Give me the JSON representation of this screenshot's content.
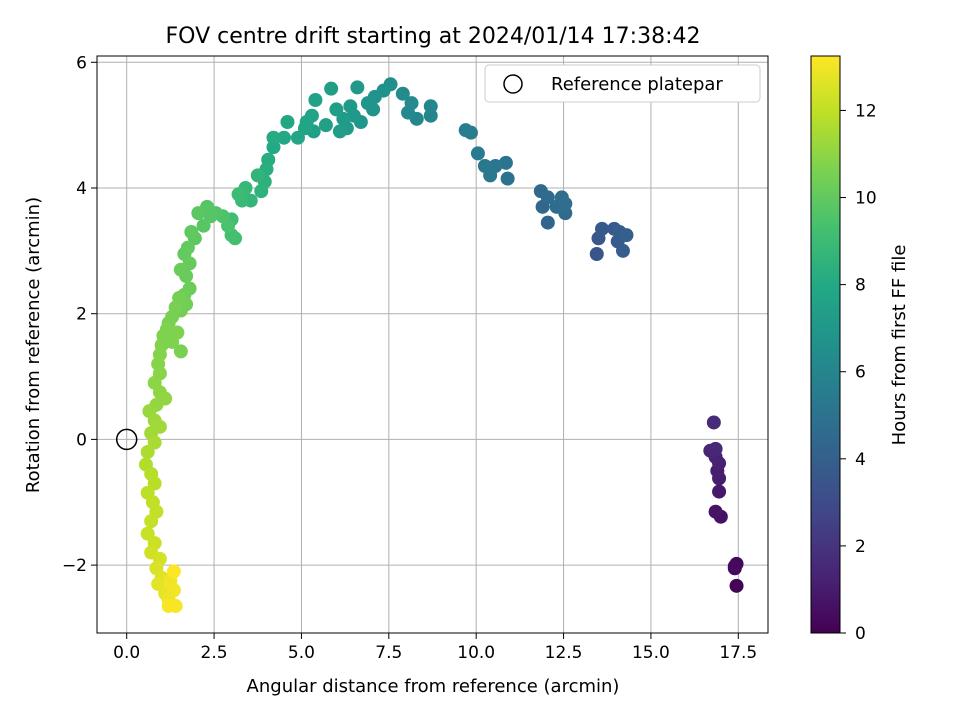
{
  "chart_data": {
    "type": "scatter",
    "title": "FOV centre drift starting at 2024/01/14 17:38:42",
    "xlabel": "Angular distance from reference (arcmin)",
    "ylabel": "Rotation from reference (arcmin)",
    "xlim": [
      -0.85,
      18.35
    ],
    "ylim": [
      -3.08,
      6.1
    ],
    "xticks": [
      0.0,
      2.5,
      5.0,
      7.5,
      10.0,
      12.5,
      15.0,
      17.5
    ],
    "xtick_labels": [
      "0.0",
      "2.5",
      "5.0",
      "7.5",
      "10.0",
      "12.5",
      "15.0",
      "17.5"
    ],
    "yticks": [
      -2,
      0,
      2,
      4,
      6
    ],
    "ytick_labels": [
      "−2",
      "0",
      "2",
      "4",
      "6"
    ],
    "grid": true,
    "colormap": "viridis",
    "colorbar": {
      "label": "Hours from first FF file",
      "range": [
        0,
        13.25
      ],
      "ticks": [
        0,
        2,
        4,
        6,
        8,
        10,
        12
      ],
      "tick_labels": [
        "0",
        "2",
        "4",
        "6",
        "8",
        "10",
        "12"
      ]
    },
    "legend": {
      "placement": "top-right",
      "entries": [
        "Reference platepar"
      ]
    },
    "reference_point": {
      "name": "Reference platepar",
      "x": 0,
      "y": 0
    },
    "points": [
      [
        17.45,
        -2.33,
        0.1
      ],
      [
        17.4,
        -2.05,
        0.2
      ],
      [
        17.45,
        -1.98,
        0.3
      ],
      [
        17.4,
        -2.02,
        0.35
      ],
      [
        17.0,
        -1.23,
        0.6
      ],
      [
        16.85,
        -1.15,
        0.7
      ],
      [
        16.95,
        -0.83,
        0.85
      ],
      [
        16.95,
        -0.62,
        1.0
      ],
      [
        16.9,
        -0.5,
        1.1
      ],
      [
        16.95,
        -0.38,
        1.2
      ],
      [
        16.85,
        -0.28,
        1.3
      ],
      [
        16.7,
        -0.18,
        1.4
      ],
      [
        16.85,
        -0.15,
        1.5
      ],
      [
        16.8,
        0.27,
        1.6
      ],
      [
        13.45,
        2.95,
        3.5
      ],
      [
        13.5,
        3.2,
        3.6
      ],
      [
        13.6,
        3.35,
        3.7
      ],
      [
        13.95,
        3.35,
        3.75
      ],
      [
        14.05,
        3.15,
        3.8
      ],
      [
        14.2,
        3.0,
        3.9
      ],
      [
        14.1,
        3.3,
        3.95
      ],
      [
        14.3,
        3.25,
        4.0
      ],
      [
        12.05,
        3.45,
        4.3
      ],
      [
        11.9,
        3.7,
        4.4
      ],
      [
        11.85,
        3.95,
        4.5
      ],
      [
        12.05,
        3.85,
        4.55
      ],
      [
        12.55,
        3.6,
        4.6
      ],
      [
        12.45,
        3.85,
        4.65
      ],
      [
        12.3,
        3.7,
        4.7
      ],
      [
        12.55,
        3.75,
        4.75
      ],
      [
        10.9,
        4.15,
        5.0
      ],
      [
        10.85,
        4.4,
        5.1
      ],
      [
        10.55,
        4.35,
        5.2
      ],
      [
        10.4,
        4.2,
        5.25
      ],
      [
        10.25,
        4.35,
        5.3
      ],
      [
        10.05,
        4.55,
        5.4
      ],
      [
        9.85,
        4.88,
        5.5
      ],
      [
        9.7,
        4.92,
        5.55
      ],
      [
        8.7,
        5.15,
        6.0
      ],
      [
        8.7,
        5.3,
        6.05
      ],
      [
        8.3,
        5.1,
        6.1
      ],
      [
        8.05,
        5.2,
        6.2
      ],
      [
        8.15,
        5.35,
        6.25
      ],
      [
        7.9,
        5.5,
        6.3
      ],
      [
        7.55,
        5.65,
        6.5
      ],
      [
        7.35,
        5.55,
        6.6
      ],
      [
        7.1,
        5.45,
        6.7
      ],
      [
        7.05,
        5.25,
        6.8
      ],
      [
        6.9,
        5.35,
        6.85
      ],
      [
        6.7,
        5.05,
        6.9
      ],
      [
        6.6,
        5.6,
        7.0
      ],
      [
        6.5,
        5.15,
        7.05
      ],
      [
        6.4,
        5.3,
        7.1
      ],
      [
        6.3,
        4.95,
        7.15
      ],
      [
        6.2,
        5.1,
        7.2
      ],
      [
        6.1,
        4.9,
        7.3
      ],
      [
        6.0,
        5.25,
        7.35
      ],
      [
        5.85,
        5.58,
        7.4
      ],
      [
        5.7,
        5.0,
        7.45
      ],
      [
        5.35,
        4.9,
        7.5
      ],
      [
        5.4,
        5.4,
        7.55
      ],
      [
        5.3,
        5.15,
        7.6
      ],
      [
        5.15,
        5.05,
        7.7
      ],
      [
        5.1,
        4.95,
        7.8
      ],
      [
        4.9,
        4.8,
        7.85
      ],
      [
        4.6,
        5.05,
        7.9
      ],
      [
        4.5,
        4.8,
        7.95
      ],
      [
        4.2,
        4.65,
        8.0
      ],
      [
        4.2,
        4.8,
        8.1
      ],
      [
        4.05,
        4.45,
        8.2
      ],
      [
        4.0,
        4.3,
        8.3
      ],
      [
        3.95,
        4.1,
        8.4
      ],
      [
        3.85,
        3.95,
        8.5
      ],
      [
        3.75,
        4.2,
        8.6
      ],
      [
        3.55,
        3.8,
        8.7
      ],
      [
        3.4,
        4.0,
        8.8
      ],
      [
        3.3,
        3.8,
        8.9
      ],
      [
        3.2,
        3.9,
        9.0
      ],
      [
        3.0,
        3.5,
        9.1
      ],
      [
        3.1,
        3.2,
        9.2
      ],
      [
        3.0,
        3.25,
        9.3
      ],
      [
        2.9,
        3.4,
        9.4
      ],
      [
        2.75,
        3.55,
        9.5
      ],
      [
        2.55,
        3.6,
        9.6
      ],
      [
        2.4,
        3.55,
        9.7
      ],
      [
        2.3,
        3.7,
        9.75
      ],
      [
        2.2,
        3.4,
        9.8
      ],
      [
        2.05,
        3.6,
        9.85
      ],
      [
        1.95,
        3.2,
        9.9
      ],
      [
        1.85,
        3.3,
        9.95
      ],
      [
        1.75,
        3.05,
        10.0
      ],
      [
        1.65,
        2.95,
        10.05
      ],
      [
        1.8,
        2.8,
        10.1
      ],
      [
        1.7,
        2.6,
        10.15
      ],
      [
        1.55,
        2.7,
        10.2
      ],
      [
        1.8,
        2.4,
        10.25
      ],
      [
        1.65,
        2.3,
        10.3
      ],
      [
        1.7,
        2.15,
        10.35
      ],
      [
        1.55,
        2.05,
        10.4
      ],
      [
        1.5,
        2.25,
        10.45
      ],
      [
        1.4,
        2.1,
        10.5
      ],
      [
        1.3,
        1.95,
        10.55
      ],
      [
        1.2,
        1.85,
        10.6
      ],
      [
        1.15,
        1.75,
        10.65
      ],
      [
        1.05,
        1.65,
        10.7
      ],
      [
        1.0,
        1.5,
        10.75
      ],
      [
        0.95,
        1.35,
        10.8
      ],
      [
        0.9,
        1.2,
        10.85
      ],
      [
        0.95,
        1.05,
        10.9
      ],
      [
        0.8,
        0.9,
        10.95
      ],
      [
        0.95,
        0.75,
        11.0
      ],
      [
        1.1,
        0.65,
        11.05
      ],
      [
        0.85,
        0.55,
        11.1
      ],
      [
        1.55,
        1.4,
        10.6
      ],
      [
        1.3,
        1.55,
        10.65
      ],
      [
        1.45,
        1.7,
        10.7
      ],
      [
        0.65,
        0.45,
        11.2
      ],
      [
        0.8,
        0.3,
        11.3
      ],
      [
        0.95,
        0.2,
        11.35
      ],
      [
        0.7,
        0.1,
        11.4
      ],
      [
        0.8,
        -0.05,
        11.5
      ],
      [
        0.6,
        -0.2,
        11.6
      ],
      [
        0.55,
        -0.4,
        11.7
      ],
      [
        0.7,
        -0.55,
        11.8
      ],
      [
        0.8,
        -0.7,
        11.85
      ],
      [
        0.6,
        -0.85,
        11.9
      ],
      [
        0.75,
        -1.0,
        12.0
      ],
      [
        0.85,
        -1.15,
        12.05
      ],
      [
        0.7,
        -1.3,
        12.1
      ],
      [
        0.6,
        -1.5,
        12.15
      ],
      [
        0.8,
        -1.65,
        12.2
      ],
      [
        0.7,
        -1.8,
        12.3
      ],
      [
        0.95,
        -1.9,
        12.4
      ],
      [
        0.85,
        -2.05,
        12.5
      ],
      [
        1.0,
        -2.2,
        12.6
      ],
      [
        0.9,
        -2.3,
        12.7
      ],
      [
        1.1,
        -2.45,
        12.8
      ],
      [
        1.2,
        -2.55,
        12.9
      ],
      [
        1.25,
        -2.25,
        12.95
      ],
      [
        1.35,
        -2.4,
        13.0
      ],
      [
        1.4,
        -2.65,
        13.1
      ],
      [
        1.2,
        -2.65,
        13.15
      ],
      [
        1.35,
        -2.1,
        13.2
      ]
    ]
  }
}
